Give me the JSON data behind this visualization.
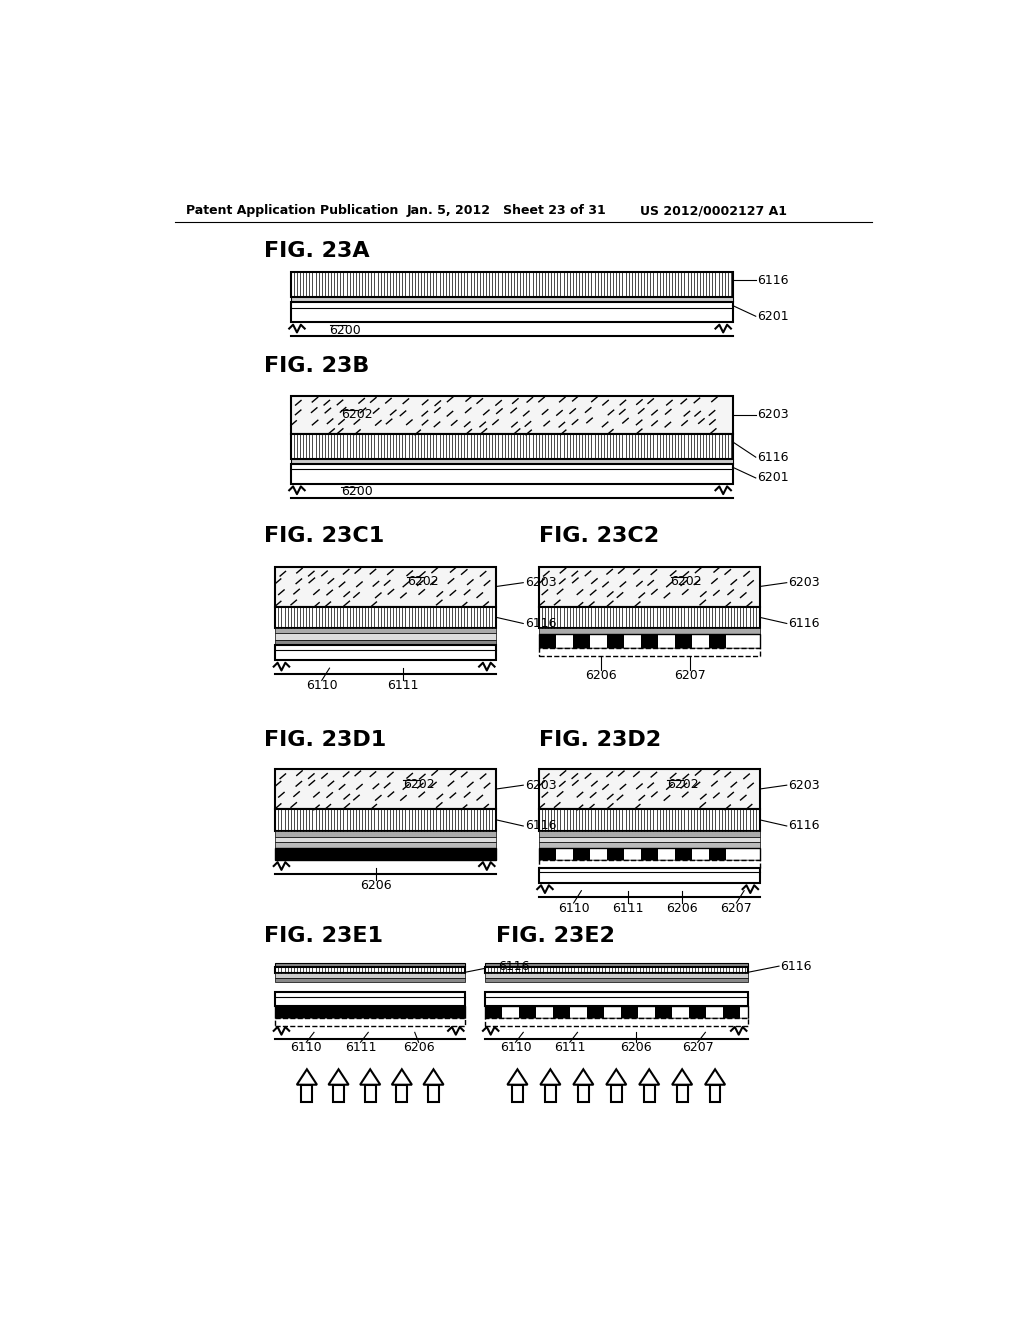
{
  "bg_color": "#ffffff",
  "text_color": "#000000",
  "header_left": "Patent Application Publication",
  "header_mid": "Jan. 5, 2012   Sheet 23 of 31",
  "header_right": "US 2012/0002127 A1"
}
